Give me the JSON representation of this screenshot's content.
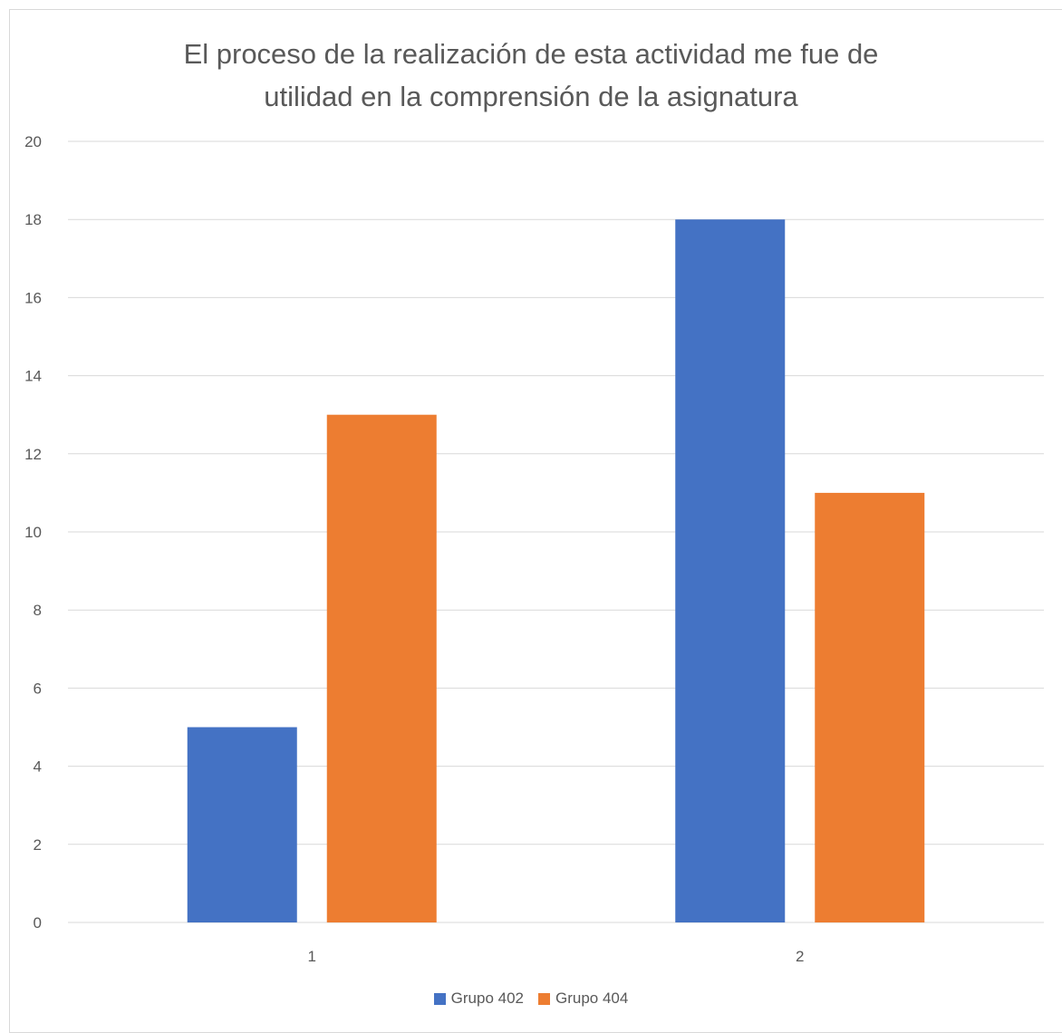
{
  "chart_data": {
    "type": "bar",
    "title": "El proceso de la realización de esta actividad me fue de\nutilidad en la comprensión de la asignatura",
    "categories": [
      "1",
      "2"
    ],
    "series": [
      {
        "name": "Grupo 402",
        "values": [
          5,
          18
        ],
        "color": "#4472C4"
      },
      {
        "name": "Grupo 404",
        "values": [
          13,
          11
        ],
        "color": "#ED7D31"
      }
    ],
    "ylim": [
      0,
      20
    ],
    "yticks": [
      0,
      2,
      4,
      6,
      8,
      10,
      12,
      14,
      16,
      18,
      20
    ],
    "grid": true,
    "legend_position": "bottom",
    "gridline_color": "#d9d9d9",
    "text_color": "#595959"
  }
}
